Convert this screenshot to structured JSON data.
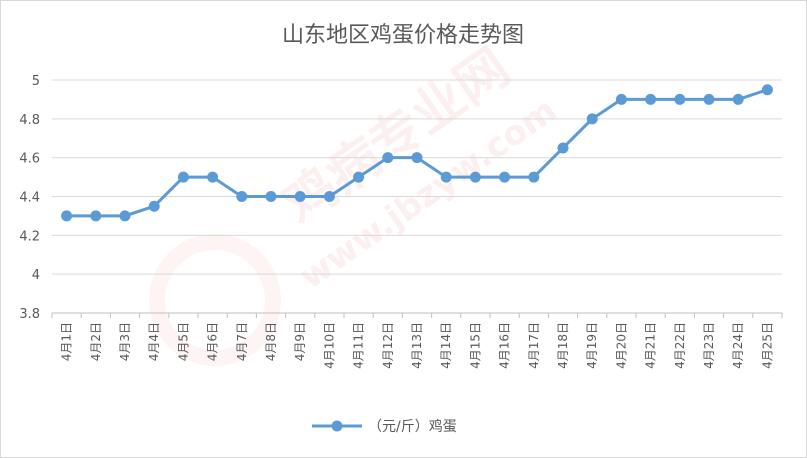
{
  "chart_data": {
    "type": "line",
    "title": "山东地区鸡蛋价格走势图",
    "categories": [
      "4月1日",
      "4月2日",
      "4月3日",
      "4月4日",
      "4月5日",
      "4月6日",
      "4月7日",
      "4月8日",
      "4月9日",
      "4月10日",
      "4月11日",
      "4月12日",
      "4月13日",
      "4月14日",
      "4月15日",
      "4月16日",
      "4月17日",
      "4月18日",
      "4月19日",
      "4月20日",
      "4月21日",
      "4月22日",
      "4月23日",
      "4月24日",
      "4月25日"
    ],
    "series": [
      {
        "name": "（元/斤）鸡蛋",
        "values": [
          4.3,
          4.3,
          4.3,
          4.35,
          4.5,
          4.5,
          4.4,
          4.4,
          4.4,
          4.4,
          4.5,
          4.6,
          4.6,
          4.5,
          4.5,
          4.5,
          4.5,
          4.65,
          4.8,
          4.9,
          4.9,
          4.9,
          4.9,
          4.9,
          4.95
        ]
      }
    ],
    "ylim": [
      3.8,
      5
    ],
    "yticks": [
      "3.8",
      "4",
      "4.2",
      "4.4",
      "4.6",
      "4.8",
      "5"
    ],
    "grid": "horizontal",
    "legend": "bottom",
    "line_color": "#5b9bd5"
  },
  "watermark": {
    "line1": "鸡病专业网",
    "line2": "www.jbzyw.com"
  }
}
